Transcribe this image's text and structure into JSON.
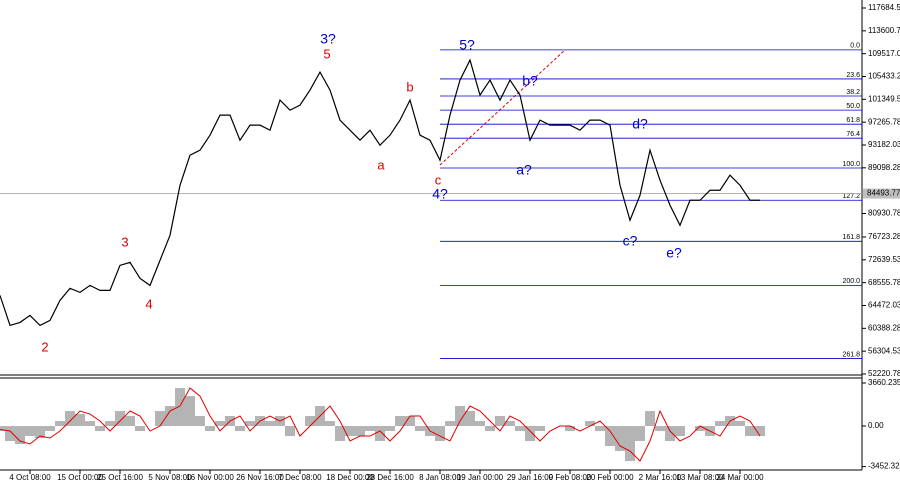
{
  "chart_data": [
    {
      "type": "line",
      "color": "#000000",
      "categories": [
        null,
        null,
        null,
        "4 Oct 08:00",
        null,
        null,
        null,
        null,
        "15 Oct 00:00",
        null,
        null,
        null,
        "25 Oct 16:00",
        null,
        null,
        null,
        null,
        "5 Nov 08:00",
        null,
        null,
        null,
        "16 Nov 00:00",
        null,
        null,
        null,
        null,
        "26 Nov 16:00",
        null,
        null,
        null,
        "7 Dec 08:00",
        null,
        null,
        null,
        null,
        "18 Dec 00:00",
        null,
        null,
        null,
        "28 Dec 16:00",
        null,
        null,
        null,
        null,
        "8 Jan 08:00",
        null,
        null,
        null,
        "19 Jan 00:00",
        null,
        null,
        null,
        null,
        "29 Jan 16:00",
        null,
        null,
        null,
        "9 Feb 08:00",
        null,
        null,
        null,
        "20 Feb 00:00",
        null,
        null,
        null,
        null,
        "2 Mar 16:00",
        null,
        null,
        null,
        "13 Mar 08:00",
        null,
        null,
        null,
        "24 Mar 00:00",
        null,
        null
      ],
      "values": [
        66280,
        60910,
        61450,
        62700,
        60910,
        61800,
        65390,
        67540,
        66820,
        68070,
        67180,
        67180,
        71660,
        72190,
        69330,
        68070,
        72550,
        77030,
        85980,
        91360,
        92250,
        94940,
        98520,
        98520,
        94040,
        96730,
        96730,
        95830,
        101210,
        99420,
        100310,
        103000,
        106220,
        103000,
        97630,
        95830,
        94040,
        95830,
        93150,
        94940,
        97630,
        101210,
        94940,
        94040,
        90460,
        98520,
        104790,
        108370,
        102100,
        104790,
        101210,
        104790,
        102100,
        94040,
        97630,
        96730,
        96730,
        96730,
        95830,
        97630,
        97630,
        96730,
        85980,
        79720,
        84190,
        92250,
        86880,
        82400,
        78820,
        83300,
        83300,
        85090,
        85090,
        87780,
        85980,
        83300,
        83300
      ],
      "ylim": [
        52220.78,
        117684.53
      ],
      "yticks": [
        117684.53,
        113600.78,
        109517.03,
        105433.28,
        101349.53,
        97265.78,
        93182.03,
        89098.28,
        80930.78,
        76723.28,
        72639.53,
        68555.78,
        64472.03,
        60388.28,
        56304.53,
        52220.78
      ],
      "last_price": 84493.77,
      "fib_color": "#0000cc",
      "fib_levels": [
        {
          "value": 110200,
          "label": "0.0"
        },
        {
          "value": 105000,
          "label": "23.6"
        },
        {
          "value": 101940,
          "label": "38.2"
        },
        {
          "value": 99420,
          "label": "50.0"
        },
        {
          "value": 96900,
          "label": "61.8"
        },
        {
          "value": 94400,
          "label": "76.4"
        },
        {
          "value": 89060,
          "label": "100.0"
        },
        {
          "value": 83300,
          "label": "127.2"
        },
        {
          "value": 75950,
          "label": "161.8"
        },
        {
          "value": 68070,
          "label": "200.0"
        },
        {
          "value": 55000,
          "label": "261.8"
        }
      ],
      "annotations": [
        "2",
        "3",
        "4",
        "5",
        "3?",
        "a",
        "b",
        "c",
        "4?",
        "5?",
        "b?",
        "a?",
        "d?",
        "c?",
        "e?"
      ]
    },
    {
      "type": "histogram",
      "color": "#b4b4b4",
      "signal_color": "#e00000",
      "values": [
        -425,
        -1275,
        -1530,
        -850,
        -1020,
        -425,
        425,
        1275,
        1020,
        425,
        -425,
        425,
        1275,
        850,
        -425,
        0,
        1275,
        1700,
        3230,
        2550,
        850,
        -425,
        425,
        850,
        -425,
        425,
        850,
        425,
        850,
        -850,
        0,
        850,
        1700,
        425,
        -1275,
        -850,
        -850,
        -425,
        -1275,
        -425,
        850,
        850,
        -425,
        -850,
        -1275,
        425,
        1700,
        1275,
        425,
        -425,
        850,
        425,
        -425,
        -1275,
        -425,
        0,
        0,
        -425,
        0,
        425,
        -425,
        -1700,
        -2125,
        -2975,
        -1275,
        1275,
        -425,
        -1275,
        -850,
        0,
        -425,
        -850,
        425,
        850,
        425,
        -850,
        -850
      ],
      "signal": [
        -300,
        -425,
        -1275,
        -1530,
        -850,
        -1020,
        -425,
        425,
        1275,
        1020,
        425,
        -425,
        425,
        1275,
        850,
        -425,
        0,
        1275,
        1700,
        3230,
        2550,
        850,
        -425,
        425,
        850,
        -425,
        425,
        850,
        425,
        850,
        -850,
        0,
        850,
        1700,
        425,
        -1275,
        -850,
        -850,
        -425,
        -1275,
        -425,
        850,
        850,
        -425,
        -850,
        -1275,
        425,
        1700,
        1275,
        425,
        -425,
        850,
        425,
        -425,
        -1275,
        -425,
        0,
        0,
        -425,
        0,
        425,
        -425,
        -1700,
        -2125,
        -2975,
        -1275,
        1275,
        -425,
        -1275,
        -850,
        0,
        -425,
        -850,
        425,
        850,
        425,
        -850
      ],
      "ylim": [
        -3452.32,
        3660.235
      ],
      "yticks": [
        3660.235,
        {
          "value": 0,
          "label": "0.00"
        },
        -3452.32
      ]
    }
  ]
}
